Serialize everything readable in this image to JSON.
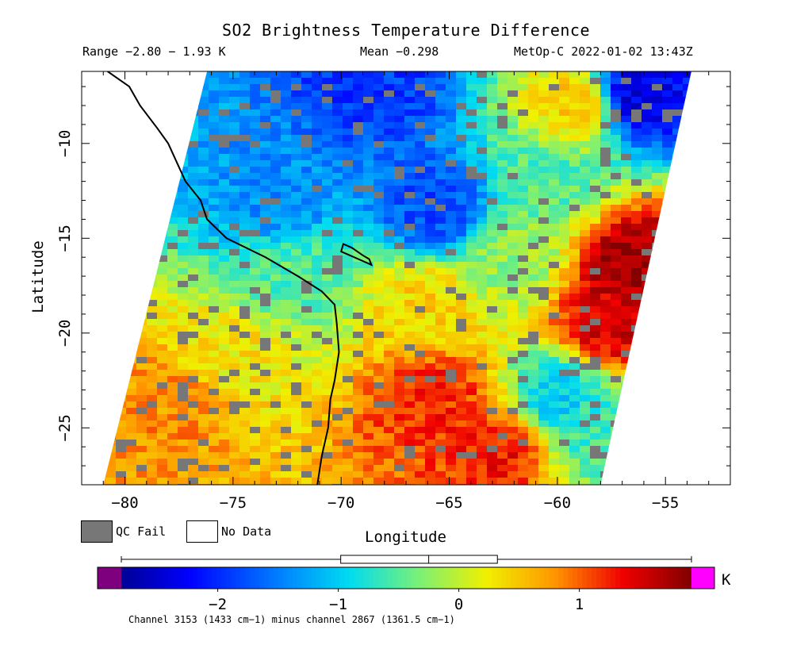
{
  "header": {
    "title": "SO2 Brightness Temperature Difference",
    "range_text": "Range −2.80 − 1.93 K",
    "mean_text": "Mean −0.298",
    "satellite_text": "MetOp-C 2022-01-02 13:43Z"
  },
  "legend": {
    "qc_fail_label": "QC Fail",
    "no_data_label": "No Data",
    "qc_fail_color": "#777777",
    "no_data_color": "#ffffff"
  },
  "colorbar": {
    "unit": "K",
    "ticks": [
      -2,
      -1,
      0,
      1
    ],
    "tick_labels": [
      "−2",
      "−1",
      "0",
      "1"
    ],
    "min": -2.8,
    "max": 1.93,
    "underflow_color": "#7f007f",
    "overflow_color": "#ff00ff",
    "boxplot": {
      "min": -2.8,
      "q1": -0.98,
      "median": -0.25,
      "q3": 0.32,
      "max": 1.93
    }
  },
  "footnote": "Channel 3153 (1433 cm−1) minus channel 2867 (1361.5 cm−1)",
  "chart_data": {
    "type": "heatmap",
    "title": "SO2 Brightness Temperature Difference",
    "xlabel": "Longitude",
    "ylabel": "Latitude",
    "xlim": [
      -82,
      -52
    ],
    "ylim": [
      -28,
      -6.2
    ],
    "x_ticks": [
      -80,
      -75,
      -70,
      -65,
      -60,
      -55
    ],
    "x_tick_labels": [
      "−80",
      "−75",
      "−70",
      "−65",
      "−60",
      "−55"
    ],
    "y_ticks": [
      -10,
      -15,
      -20,
      -25
    ],
    "y_tick_labels": [
      "−10",
      "−15",
      "−20",
      "−25"
    ],
    "value_range": [
      -2.8,
      1.93
    ],
    "mean": -0.298,
    "units": "K",
    "swath_corners": [
      [
        -76.2,
        -6.2
      ],
      [
        -53.8,
        -6.2
      ],
      [
        -58.0,
        -28.0
      ],
      [
        -81.0,
        -28.0
      ]
    ],
    "features": [
      {
        "lon": -65.5,
        "lat": -13.5,
        "value": -1.8
      },
      {
        "lon": -68.5,
        "lat": -7.0,
        "value": -1.9
      },
      {
        "lon": -56.5,
        "lat": -7.5,
        "value": -2.4
      },
      {
        "lon": -56.5,
        "lat": -16.5,
        "value": 1.8
      },
      {
        "lon": -57.5,
        "lat": -19.5,
        "value": 1.5
      },
      {
        "lon": -65.5,
        "lat": -23.5,
        "value": 1.2
      },
      {
        "lon": -62.5,
        "lat": -26.0,
        "value": 1.3
      },
      {
        "lon": -78.0,
        "lat": -24.0,
        "value": 0.8
      },
      {
        "lon": -75.0,
        "lat": -21.0,
        "value": 0.3
      },
      {
        "lon": -60.0,
        "lat": -23.5,
        "value": -1.0
      },
      {
        "lon": -58.5,
        "lat": -25.0,
        "value": -0.6
      },
      {
        "lon": -73.0,
        "lat": -13.0,
        "value": -1.4
      },
      {
        "lon": -60.5,
        "lat": -12.0,
        "value": -0.5
      },
      {
        "lon": -66.0,
        "lat": -18.5,
        "value": 0.4
      },
      {
        "lon": -72.5,
        "lat": -17.0,
        "value": -0.5
      },
      {
        "lon": -62.0,
        "lat": -16.0,
        "value": -0.2
      },
      {
        "lon": -59.0,
        "lat": -8.0,
        "value": 0.5
      }
    ],
    "coastline": [
      [
        -80.8,
        -6.2
      ],
      [
        -79.8,
        -7.0
      ],
      [
        -79.3,
        -8.0
      ],
      [
        -78.5,
        -9.2
      ],
      [
        -78.0,
        -10.0
      ],
      [
        -77.6,
        -11.0
      ],
      [
        -77.2,
        -12.0
      ],
      [
        -76.5,
        -13.0
      ],
      [
        -76.2,
        -14.0
      ],
      [
        -75.3,
        -15.0
      ],
      [
        -73.5,
        -16.0
      ],
      [
        -72.0,
        -17.0
      ],
      [
        -70.9,
        -17.8
      ],
      [
        -70.3,
        -18.5
      ],
      [
        -70.2,
        -19.5
      ],
      [
        -70.1,
        -21.0
      ],
      [
        -70.3,
        -22.5
      ],
      [
        -70.5,
        -23.5
      ],
      [
        -70.6,
        -25.0
      ],
      [
        -70.9,
        -26.5
      ],
      [
        -71.1,
        -28.0
      ]
    ],
    "lake": [
      [
        -69.9,
        -15.3
      ],
      [
        -69.5,
        -15.5
      ],
      [
        -69.0,
        -15.9
      ],
      [
        -68.7,
        -16.1
      ],
      [
        -68.6,
        -16.4
      ],
      [
        -69.0,
        -16.2
      ],
      [
        -69.6,
        -15.9
      ],
      [
        -70.0,
        -15.7
      ]
    ]
  }
}
